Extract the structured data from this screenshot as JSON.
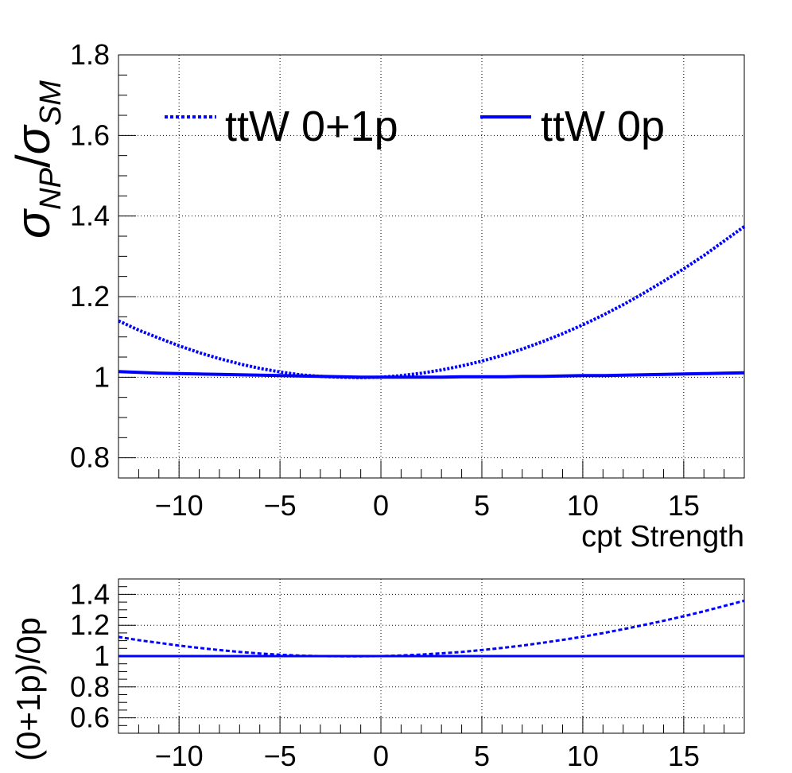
{
  "chart_data": [
    {
      "type": "line",
      "panel": "main",
      "xlabel": "cpt Strength",
      "ylabel_base": "σ",
      "ylabel_num_sub": "NP",
      "ylabel_slash": "/",
      "ylabel_den_sub": "SM",
      "xlim": [
        -13,
        18
      ],
      "ylim": [
        0.75,
        1.8
      ],
      "xticks": [
        -10,
        -5,
        0,
        5,
        10,
        15
      ],
      "xtick_labels": [
        "−10",
        "−5",
        "0",
        "5",
        "10",
        "15"
      ],
      "yticks": [
        0.8,
        1,
        1.2,
        1.4,
        1.6,
        1.8
      ],
      "ytick_labels": [
        "0.8",
        "1",
        "1.2",
        "1.4",
        "1.6",
        "1.8"
      ],
      "grid": true,
      "legend_position": "top",
      "series": [
        {
          "name": "ttW 0+1p",
          "style": "dotted",
          "color": "#0000ff",
          "x": [
            -13,
            -12,
            -11,
            -10,
            -9,
            -8,
            -7,
            -6,
            -5,
            -4,
            -3,
            -2,
            -1,
            0,
            1,
            2,
            3,
            4,
            5,
            6,
            7,
            8,
            9,
            10,
            11,
            12,
            13,
            14,
            15,
            16,
            17,
            18
          ],
          "y": [
            1.14,
            1.117,
            1.097,
            1.078,
            1.061,
            1.046,
            1.033,
            1.022,
            1.013,
            1.006,
            1.002,
            1.0,
            0.999,
            1.0,
            1.004,
            1.01,
            1.018,
            1.028,
            1.04,
            1.054,
            1.07,
            1.088,
            1.108,
            1.13,
            1.154,
            1.18,
            1.208,
            1.238,
            1.269,
            1.302,
            1.338,
            1.374
          ]
        },
        {
          "name": "ttW 0p",
          "style": "solid",
          "color": "#0000ff",
          "x": [
            -13,
            -12,
            -11,
            -10,
            -9,
            -8,
            -7,
            -6,
            -5,
            -4,
            -3,
            -2,
            -1,
            0,
            1,
            2,
            3,
            4,
            5,
            6,
            7,
            8,
            9,
            10,
            11,
            12,
            13,
            14,
            15,
            16,
            17,
            18
          ],
          "y": [
            1.014,
            1.012,
            1.01,
            1.009,
            1.008,
            1.007,
            1.006,
            1.005,
            1.004,
            1.003,
            1.002,
            1.001,
            1.0,
            1.0,
            1.0,
            1.0,
            1.0,
            1.001,
            1.001,
            1.001,
            1.002,
            1.002,
            1.003,
            1.004,
            1.004,
            1.005,
            1.006,
            1.007,
            1.008,
            1.009,
            1.01,
            1.011
          ]
        }
      ]
    },
    {
      "type": "line",
      "panel": "ratio",
      "ylabel": "(0+1p)/0p",
      "xlim": [
        -13,
        18
      ],
      "ylim": [
        0.5,
        1.5
      ],
      "xticks": [
        -10,
        -5,
        0,
        5,
        10,
        15
      ],
      "xtick_labels": [
        "−10",
        "−5",
        "0",
        "5",
        "10",
        "15"
      ],
      "yticks": [
        0.6,
        0.8,
        1,
        1.2,
        1.4
      ],
      "ytick_labels": [
        "0.6",
        "0.8",
        "1",
        "1.2",
        "1.4"
      ],
      "grid": true,
      "series": [
        {
          "style": "dotted",
          "color": "#0000ff",
          "x": [
            -13,
            -12,
            -11,
            -10,
            -9,
            -8,
            -7,
            -6,
            -5,
            -4,
            -3,
            -2,
            -1,
            0,
            1,
            2,
            3,
            4,
            5,
            6,
            7,
            8,
            9,
            10,
            11,
            12,
            13,
            14,
            15,
            16,
            17,
            18
          ],
          "y": [
            1.124,
            1.103,
            1.086,
            1.068,
            1.053,
            1.039,
            1.027,
            1.017,
            1.009,
            1.003,
            1.0,
            0.999,
            0.999,
            1.0,
            1.004,
            1.01,
            1.018,
            1.027,
            1.039,
            1.053,
            1.068,
            1.086,
            1.105,
            1.126,
            1.149,
            1.174,
            1.201,
            1.229,
            1.259,
            1.29,
            1.325,
            1.359
          ]
        },
        {
          "style": "solid",
          "color": "#0000ff",
          "x": [
            -13,
            18
          ],
          "y": [
            1.0,
            1.0
          ]
        }
      ]
    }
  ]
}
